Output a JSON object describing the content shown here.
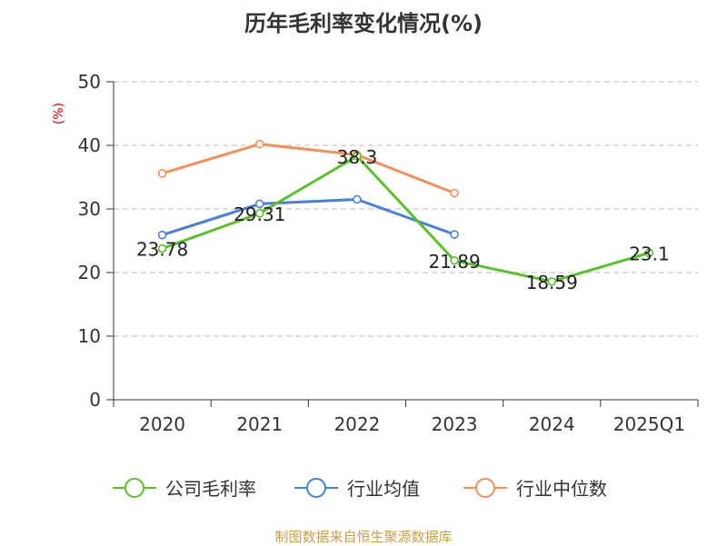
{
  "title": "历年毛利率变化情况(%)",
  "source": "制图数据来自恒生聚源数据库",
  "chart_data": {
    "type": "line",
    "title": "历年毛利率变化情况(%)",
    "ylabel": "(%)",
    "xlabel": "",
    "categories": [
      "2020",
      "2021",
      "2022",
      "2023",
      "2024",
      "2025Q1"
    ],
    "ylim": [
      0,
      50
    ],
    "yticks": [
      0,
      10,
      20,
      30,
      40,
      50
    ],
    "grid": "horizontal-dashed",
    "legend_position": "bottom",
    "series": [
      {
        "name": "公司毛利率",
        "color": "#5bc12a",
        "values": [
          23.78,
          29.31,
          38.3,
          21.89,
          18.59,
          23.1
        ],
        "data_labels": [
          "23.78",
          "29.31",
          "38.3",
          "21.89",
          "18.59",
          "23.1"
        ]
      },
      {
        "name": "行业均值",
        "color": "#4a7fdc",
        "values": [
          25.9,
          30.8,
          31.5,
          26.0,
          null,
          null
        ]
      },
      {
        "name": "行业中位数",
        "color": "#f38f5a",
        "values": [
          35.6,
          40.2,
          38.5,
          32.5,
          null,
          null
        ]
      }
    ]
  }
}
